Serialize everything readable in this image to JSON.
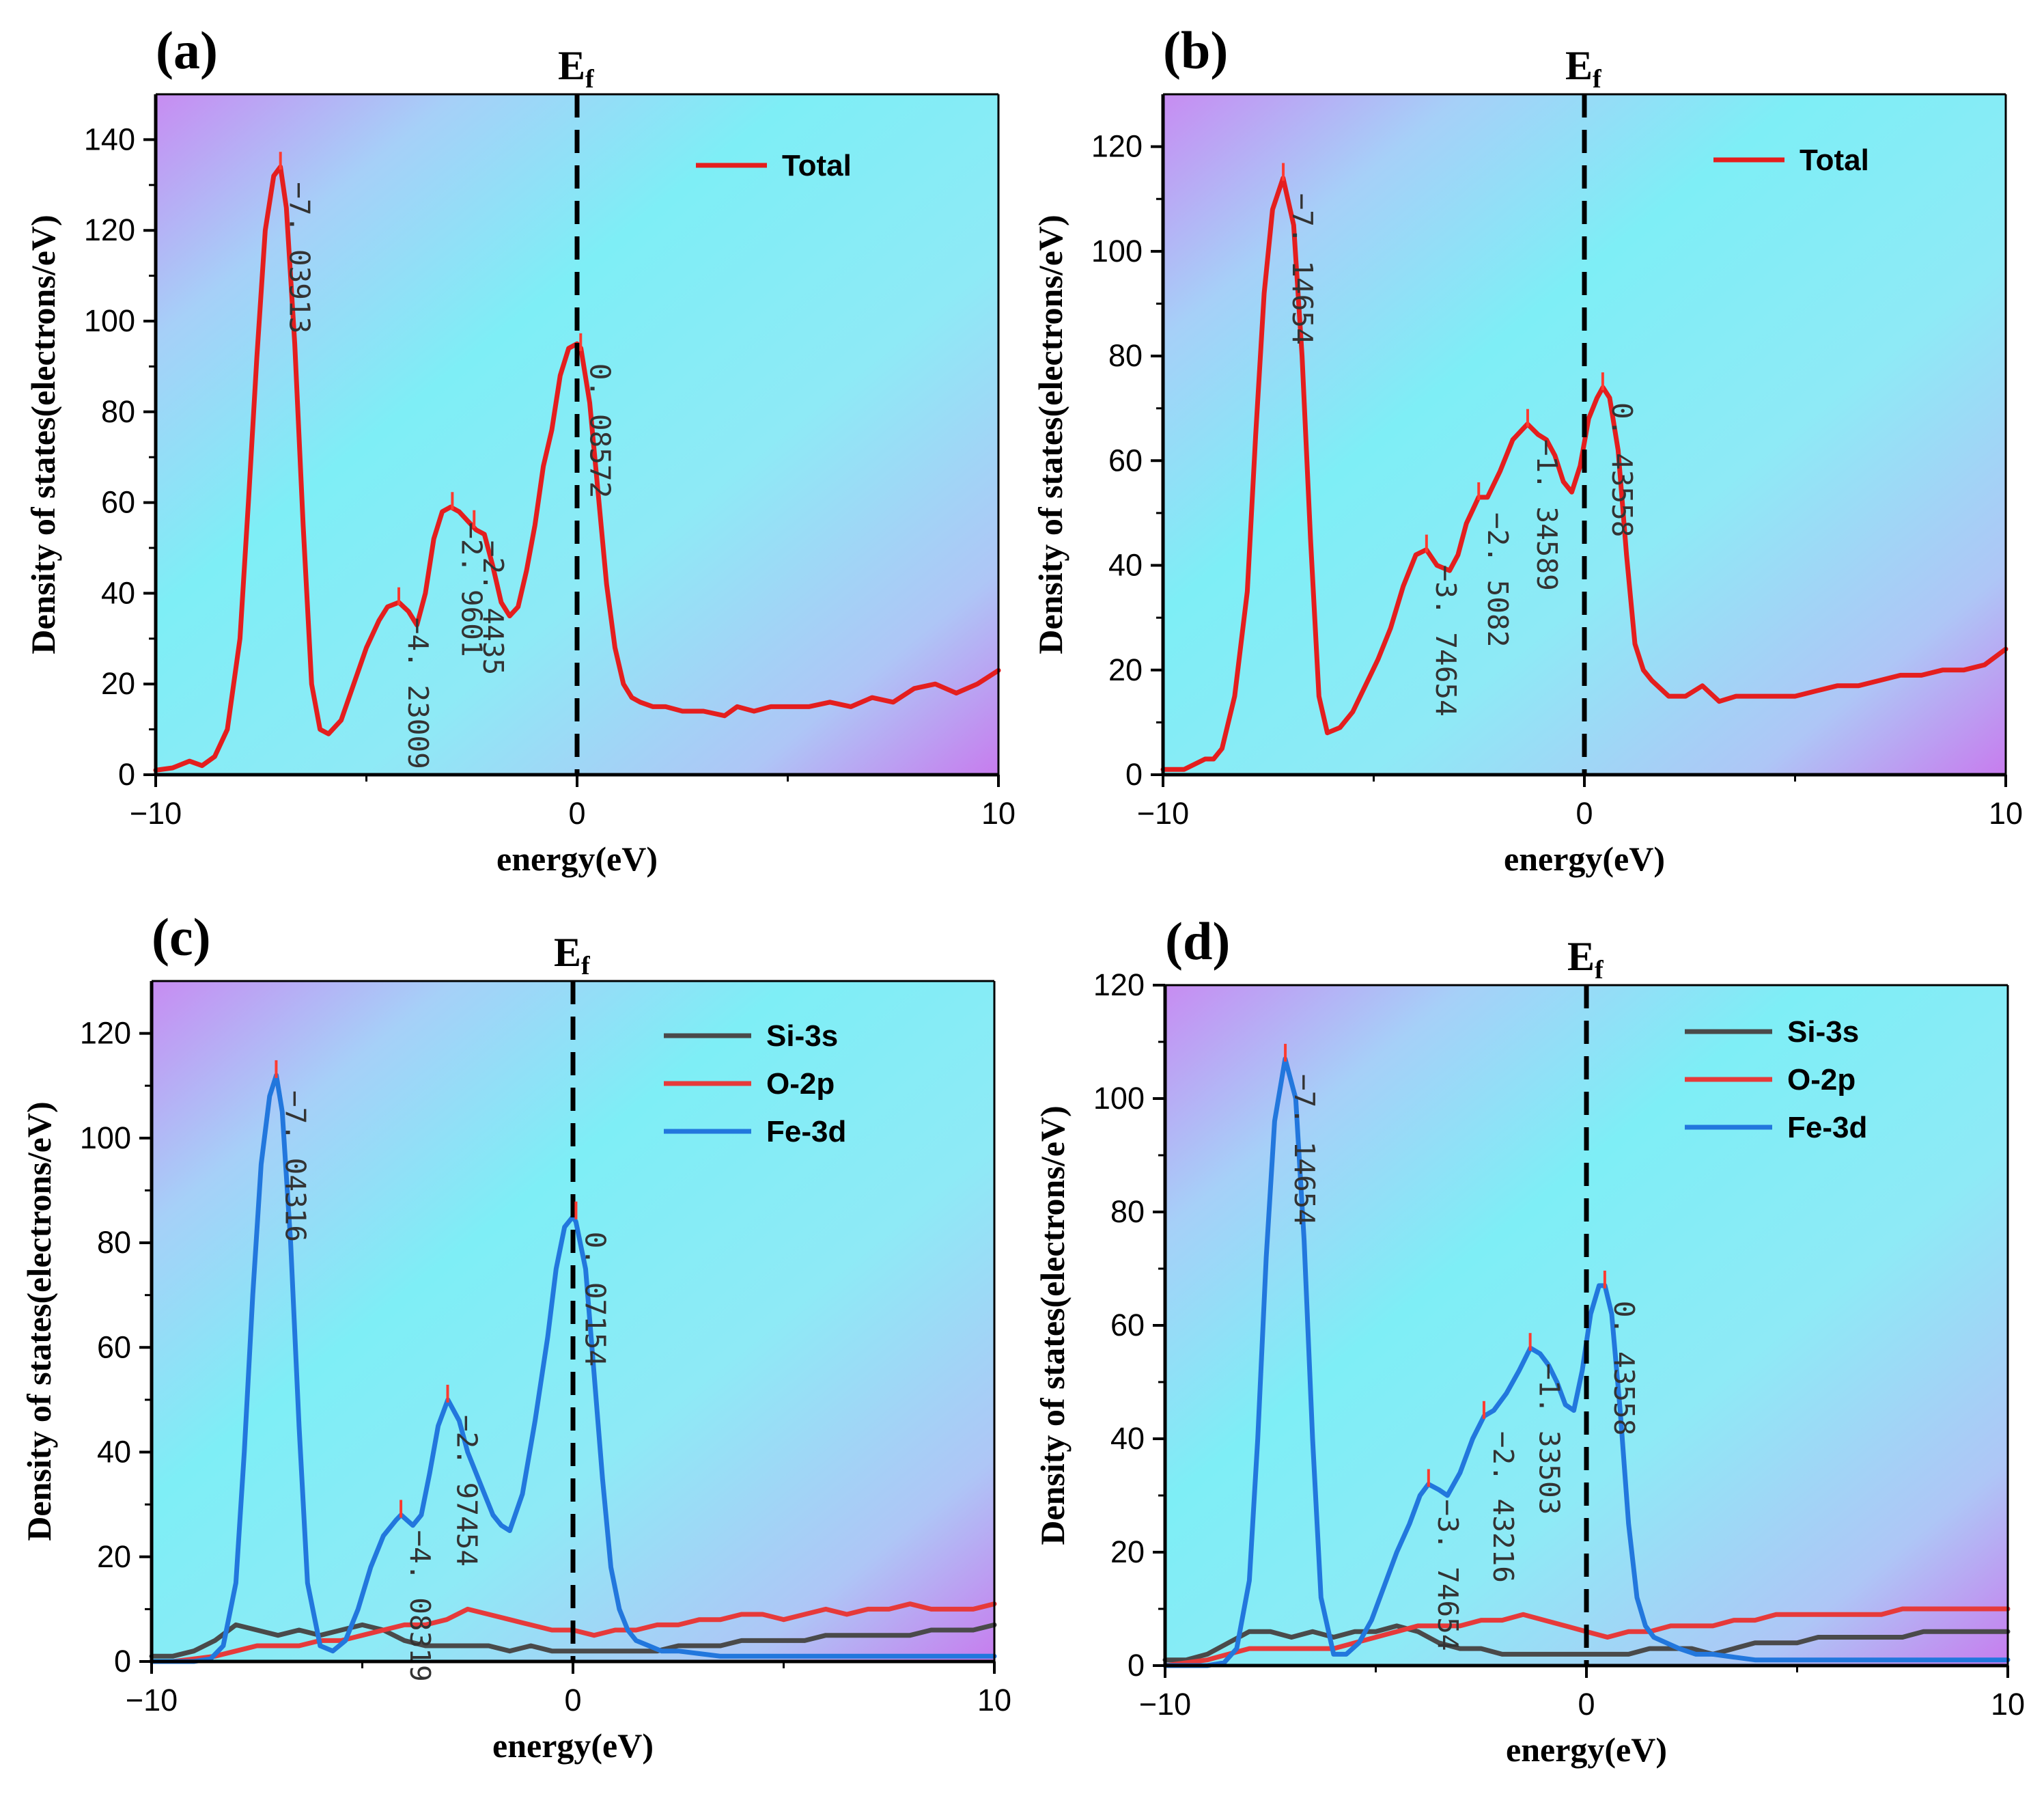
{
  "figure": {
    "ef_label": "E",
    "ef_sub": "f"
  },
  "colors": {
    "total": "#e41e1e",
    "si3s": "#4a4a4a",
    "o2p": "#e63a3a",
    "fe3d": "#2277dd",
    "marker": "#ff3b30"
  },
  "chart_data": [
    {
      "id": "a",
      "tag": "(a)",
      "type": "line",
      "xlabel": "energy(eV)",
      "ylabel": "Density of states(electrons/eV)",
      "xlim": [
        -10,
        10
      ],
      "ylim": [
        0,
        150
      ],
      "xticks": [
        -10,
        0,
        10
      ],
      "yticks": [
        0,
        20,
        40,
        60,
        80,
        100,
        120,
        140
      ],
      "series": [
        {
          "name": "Total",
          "color_key": "total",
          "x": [
            -10,
            -9.6,
            -9.2,
            -8.9,
            -8.6,
            -8.3,
            -8.0,
            -7.8,
            -7.6,
            -7.4,
            -7.2,
            -7.04,
            -6.9,
            -6.7,
            -6.5,
            -6.3,
            -6.1,
            -5.9,
            -5.6,
            -5.3,
            -5.0,
            -4.7,
            -4.5,
            -4.23,
            -4.0,
            -3.8,
            -3.6,
            -3.4,
            -3.2,
            -3.0,
            -2.8,
            -2.6,
            -2.4,
            -2.2,
            -2.0,
            -1.8,
            -1.6,
            -1.4,
            -1.2,
            -1.0,
            -0.8,
            -0.6,
            -0.4,
            -0.2,
            0.0,
            0.09,
            0.3,
            0.5,
            0.7,
            0.9,
            1.1,
            1.3,
            1.5,
            1.8,
            2.1,
            2.5,
            3.0,
            3.5,
            3.8,
            4.2,
            4.6,
            5.0,
            5.5,
            6.0,
            6.5,
            7.0,
            7.5,
            8.0,
            8.5,
            9.0,
            9.5,
            10.0
          ],
          "y": [
            1,
            1.5,
            3,
            2,
            4,
            10,
            30,
            60,
            92,
            120,
            132,
            134,
            125,
            95,
            55,
            20,
            10,
            9,
            12,
            20,
            28,
            34,
            37,
            38,
            36,
            33,
            40,
            52,
            58,
            59,
            58,
            56,
            54,
            53,
            46,
            38,
            35,
            37,
            45,
            55,
            68,
            76,
            88,
            94,
            95,
            94,
            82,
            62,
            42,
            28,
            20,
            17,
            16,
            15,
            15,
            14,
            14,
            13,
            15,
            14,
            15,
            15,
            15,
            16,
            15,
            17,
            16,
            19,
            20,
            18,
            20,
            23
          ]
        }
      ],
      "legend": {
        "position": "top-right",
        "entries": [
          "Total"
        ]
      },
      "peaks": [
        {
          "x": -7.03913,
          "y": 134,
          "label": "−7. 03913"
        },
        {
          "x": -4.23009,
          "y": 38,
          "label": "−4. 23009"
        },
        {
          "x": -2.9601,
          "y": 59,
          "label": "−2. 9601"
        },
        {
          "x": -2.4435,
          "y": 55,
          "label": "−2. 4435"
        },
        {
          "x": 0.08572,
          "y": 94,
          "label": "0. 08572"
        }
      ]
    },
    {
      "id": "b",
      "tag": "(b)",
      "type": "line",
      "xlabel": "energy(eV)",
      "ylabel": "Density of states(electrons/eV)",
      "xlim": [
        -10,
        10
      ],
      "ylim": [
        0,
        130
      ],
      "xticks": [
        -10,
        0,
        10
      ],
      "yticks": [
        0,
        20,
        40,
        60,
        80,
        100,
        120
      ],
      "series": [
        {
          "name": "Total",
          "color_key": "total",
          "x": [
            -10,
            -9.5,
            -9.0,
            -8.8,
            -8.6,
            -8.3,
            -8.0,
            -7.8,
            -7.6,
            -7.4,
            -7.15,
            -6.9,
            -6.7,
            -6.5,
            -6.3,
            -6.1,
            -5.8,
            -5.5,
            -5.2,
            -4.9,
            -4.6,
            -4.3,
            -4.0,
            -3.75,
            -3.5,
            -3.2,
            -3.0,
            -2.8,
            -2.51,
            -2.3,
            -2.0,
            -1.7,
            -1.35,
            -1.1,
            -0.9,
            -0.7,
            -0.5,
            -0.3,
            -0.1,
            0.1,
            0.3,
            0.44,
            0.6,
            0.8,
            1.0,
            1.2,
            1.4,
            1.6,
            2.0,
            2.4,
            2.8,
            3.2,
            3.6,
            4.0,
            4.5,
            5.0,
            5.5,
            6.0,
            6.5,
            7.0,
            7.5,
            8.0,
            8.5,
            9.0,
            9.5,
            10.0
          ],
          "y": [
            1,
            1,
            3,
            3,
            5,
            15,
            35,
            65,
            92,
            108,
            114,
            105,
            80,
            45,
            15,
            8,
            9,
            12,
            17,
            22,
            28,
            36,
            42,
            43,
            40,
            39,
            42,
            48,
            53,
            53,
            58,
            64,
            67,
            65,
            64,
            61,
            56,
            54,
            59,
            68,
            72,
            74,
            72,
            62,
            42,
            25,
            20,
            18,
            15,
            15,
            17,
            14,
            15,
            15,
            15,
            15,
            16,
            17,
            17,
            18,
            19,
            19,
            20,
            20,
            21,
            24
          ]
        }
      ],
      "legend": {
        "position": "top-right",
        "entries": [
          "Total"
        ]
      },
      "peaks": [
        {
          "x": -7.14654,
          "y": 114,
          "label": "−7. 14654"
        },
        {
          "x": -3.74654,
          "y": 43,
          "label": "−3. 74654"
        },
        {
          "x": -2.5082,
          "y": 53,
          "label": "−2. 5082"
        },
        {
          "x": -1.34589,
          "y": 67,
          "label": "−1. 34589"
        },
        {
          "x": 0.43558,
          "y": 74,
          "label": "0. 43558"
        }
      ]
    },
    {
      "id": "c",
      "tag": "(c)",
      "type": "line",
      "xlabel": "energy(eV)",
      "ylabel": "Density of states(electrons/eV)",
      "xlim": [
        -10,
        10
      ],
      "ylim": [
        0,
        130
      ],
      "xticks": [
        -10,
        0,
        10
      ],
      "yticks": [
        0,
        20,
        40,
        60,
        80,
        100,
        120
      ],
      "series": [
        {
          "name": "Si-3s",
          "color_key": "si3s",
          "x": [
            -10,
            -9.5,
            -9.0,
            -8.5,
            -8.0,
            -7.5,
            -7.0,
            -6.5,
            -6.0,
            -5.5,
            -5.0,
            -4.5,
            -4.0,
            -3.5,
            -3.0,
            -2.5,
            -2.0,
            -1.5,
            -1.0,
            -0.5,
            0.0,
            0.5,
            1.0,
            1.5,
            2.0,
            2.5,
            3.0,
            3.5,
            4.0,
            4.5,
            5.0,
            5.5,
            6.0,
            6.5,
            7.0,
            7.5,
            8.0,
            8.5,
            9.0,
            9.5,
            10.0
          ],
          "y": [
            1,
            1,
            2,
            4,
            7,
            6,
            5,
            6,
            5,
            6,
            7,
            6,
            4,
            3,
            3,
            3,
            3,
            2,
            3,
            2,
            2,
            2,
            2,
            2,
            2,
            3,
            3,
            3,
            4,
            4,
            4,
            4,
            5,
            5,
            5,
            5,
            5,
            6,
            6,
            6,
            7
          ]
        },
        {
          "name": "O-2p",
          "color_key": "o2p",
          "x": [
            -10,
            -9.5,
            -9.0,
            -8.5,
            -8.0,
            -7.5,
            -7.0,
            -6.5,
            -6.0,
            -5.5,
            -5.0,
            -4.5,
            -4.0,
            -3.5,
            -3.0,
            -2.5,
            -2.0,
            -1.5,
            -1.0,
            -0.5,
            0.0,
            0.5,
            1.0,
            1.5,
            2.0,
            2.5,
            3.0,
            3.5,
            4.0,
            4.5,
            5.0,
            5.5,
            6.0,
            6.5,
            7.0,
            7.5,
            8.0,
            8.5,
            9.0,
            9.5,
            10.0
          ],
          "y": [
            0,
            0,
            0.5,
            1,
            2,
            3,
            3,
            3,
            4,
            4,
            5,
            6,
            7,
            7,
            8,
            10,
            9,
            8,
            7,
            6,
            6,
            5,
            6,
            6,
            7,
            7,
            8,
            8,
            9,
            9,
            8,
            9,
            10,
            9,
            10,
            10,
            11,
            10,
            10,
            10,
            11
          ]
        },
        {
          "name": "Fe-3d",
          "color_key": "fe3d",
          "x": [
            -10,
            -9.0,
            -8.6,
            -8.3,
            -8.0,
            -7.8,
            -7.6,
            -7.4,
            -7.2,
            -7.04,
            -6.9,
            -6.7,
            -6.5,
            -6.3,
            -6.0,
            -5.7,
            -5.4,
            -5.1,
            -4.8,
            -4.5,
            -4.2,
            -4.08,
            -3.8,
            -3.6,
            -3.4,
            -3.2,
            -2.97,
            -2.7,
            -2.5,
            -2.3,
            -2.1,
            -1.9,
            -1.7,
            -1.5,
            -1.2,
            -0.9,
            -0.6,
            -0.4,
            -0.2,
            0.0,
            0.07,
            0.3,
            0.5,
            0.7,
            0.9,
            1.1,
            1.3,
            1.5,
            1.8,
            2.1,
            2.5,
            3.0,
            3.5,
            4.0,
            5.0,
            6.0,
            7.0,
            8.0,
            9.0,
            10.0
          ],
          "y": [
            0,
            0,
            0.5,
            3,
            15,
            40,
            70,
            95,
            108,
            112,
            105,
            80,
            45,
            15,
            3,
            2,
            4,
            10,
            18,
            24,
            27,
            28,
            26,
            28,
            36,
            45,
            50,
            46,
            40,
            36,
            32,
            28,
            26,
            25,
            32,
            46,
            62,
            75,
            83,
            85,
            84,
            75,
            55,
            35,
            18,
            10,
            6,
            4,
            3,
            2,
            2,
            1.5,
            1,
            1,
            1,
            1,
            1,
            1,
            1,
            1
          ]
        }
      ],
      "legend": {
        "position": "top-right",
        "entries": [
          "Si-3s",
          "O-2p",
          "Fe-3d"
        ]
      },
      "peaks": [
        {
          "x": -7.04316,
          "y": 112,
          "label": "−7. 04316"
        },
        {
          "x": -4.08319,
          "y": 28,
          "label": "−4. 08319"
        },
        {
          "x": -2.97454,
          "y": 50,
          "label": "−2. 97454"
        },
        {
          "x": 0.07154,
          "y": 85,
          "label": "0. 07154"
        }
      ]
    },
    {
      "id": "d",
      "tag": "(d)",
      "type": "line",
      "xlabel": "energy(eV)",
      "ylabel": "Density of states(electrons/eV)",
      "xlim": [
        -10,
        10
      ],
      "ylim": [
        0,
        120
      ],
      "xticks": [
        -10,
        0,
        10
      ],
      "yticks": [
        0,
        20,
        40,
        60,
        80,
        100,
        120
      ],
      "series": [
        {
          "name": "Si-3s",
          "color_key": "si3s",
          "x": [
            -10,
            -9.5,
            -9.0,
            -8.5,
            -8.0,
            -7.5,
            -7.0,
            -6.5,
            -6.0,
            -5.5,
            -5.0,
            -4.5,
            -4.0,
            -3.5,
            -3.0,
            -2.5,
            -2.0,
            -1.5,
            -1.0,
            -0.5,
            0.0,
            0.5,
            1.0,
            1.5,
            2.0,
            2.5,
            3.0,
            3.5,
            4.0,
            4.5,
            5.0,
            5.5,
            6.0,
            6.5,
            7.0,
            7.5,
            8.0,
            8.5,
            9.0,
            9.5,
            10.0
          ],
          "y": [
            1,
            1,
            2,
            4,
            6,
            6,
            5,
            6,
            5,
            6,
            6,
            7,
            6,
            4,
            3,
            3,
            2,
            2,
            2,
            2,
            2,
            2,
            2,
            3,
            3,
            3,
            2,
            3,
            4,
            4,
            4,
            5,
            5,
            5,
            5,
            5,
            6,
            6,
            6,
            6,
            6
          ]
        },
        {
          "name": "O-2p",
          "color_key": "o2p",
          "x": [
            -10,
            -9.5,
            -9.0,
            -8.5,
            -8.0,
            -7.5,
            -7.0,
            -6.5,
            -6.0,
            -5.5,
            -5.0,
            -4.5,
            -4.0,
            -3.5,
            -3.0,
            -2.5,
            -2.0,
            -1.5,
            -1.0,
            -0.5,
            0.0,
            0.5,
            1.0,
            1.5,
            2.0,
            2.5,
            3.0,
            3.5,
            4.0,
            4.5,
            5.0,
            5.5,
            6.0,
            6.5,
            7.0,
            7.5,
            8.0,
            8.5,
            9.0,
            9.5,
            10.0
          ],
          "y": [
            0,
            0.5,
            1,
            2,
            3,
            3,
            3,
            3,
            3,
            4,
            5,
            6,
            7,
            7,
            7,
            8,
            8,
            9,
            8,
            7,
            6,
            5,
            6,
            6,
            7,
            7,
            7,
            8,
            8,
            9,
            9,
            9,
            9,
            9,
            9,
            10,
            10,
            10,
            10,
            10,
            10
          ]
        },
        {
          "name": "Fe-3d",
          "color_key": "fe3d",
          "x": [
            -10,
            -9.0,
            -8.6,
            -8.3,
            -8.0,
            -7.8,
            -7.6,
            -7.4,
            -7.15,
            -6.9,
            -6.7,
            -6.5,
            -6.3,
            -6.0,
            -5.7,
            -5.4,
            -5.1,
            -4.8,
            -4.5,
            -4.2,
            -3.95,
            -3.75,
            -3.5,
            -3.3,
            -3.0,
            -2.7,
            -2.43,
            -2.2,
            -1.9,
            -1.6,
            -1.33,
            -1.1,
            -0.9,
            -0.7,
            -0.5,
            -0.3,
            -0.1,
            0.1,
            0.3,
            0.44,
            0.6,
            0.8,
            1.0,
            1.2,
            1.4,
            1.6,
            1.9,
            2.2,
            2.6,
            3.0,
            3.5,
            4.0,
            5.0,
            6.0,
            7.0,
            8.0,
            9.0,
            10.0
          ],
          "y": [
            0,
            0,
            0.5,
            3,
            15,
            40,
            72,
            96,
            107,
            100,
            75,
            40,
            12,
            2,
            2,
            4,
            8,
            14,
            20,
            25,
            30,
            32,
            31,
            30,
            34,
            40,
            44,
            45,
            48,
            52,
            56,
            55,
            53,
            50,
            46,
            45,
            52,
            62,
            67,
            67,
            62,
            45,
            25,
            12,
            7,
            5,
            4,
            3,
            2,
            2,
            1.5,
            1,
            1,
            1,
            1,
            1,
            1,
            1
          ]
        }
      ],
      "legend": {
        "position": "top-right",
        "entries": [
          "Si-3s",
          "O-2p",
          "Fe-3d"
        ]
      },
      "peaks": [
        {
          "x": -7.14654,
          "y": 107,
          "label": "−7. 14654"
        },
        {
          "x": -3.74654,
          "y": 32,
          "label": "−3. 74654"
        },
        {
          "x": -2.43216,
          "y": 44,
          "label": "−2. 43216"
        },
        {
          "x": -1.33503,
          "y": 56,
          "label": "−1. 33503"
        },
        {
          "x": 0.43558,
          "y": 67,
          "label": "0. 43558"
        }
      ]
    }
  ]
}
